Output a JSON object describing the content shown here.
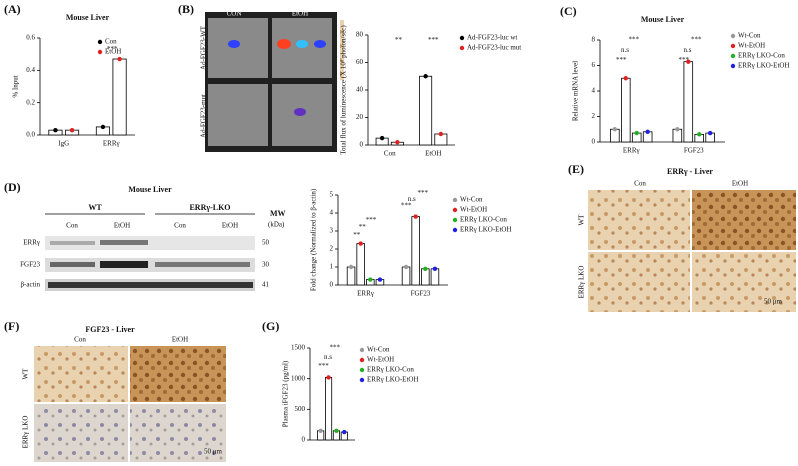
{
  "panels": {
    "a": {
      "label": "(A)"
    },
    "b": {
      "label": "(B)",
      "col1": "CON",
      "col2": "EtOH",
      "row1": "Ad-FGF23-WT",
      "row2": "Ad-FGF23-mut"
    },
    "c": {
      "label": "(C)"
    },
    "d": {
      "label": "(D)",
      "title": "Mouse Liver",
      "wt": "WT",
      "lko": "ERRγ-LKO",
      "con1": "Con",
      "etoh1": "EtOH",
      "con2": "Con",
      "etoh2": "EtOH",
      "mw": "MW",
      "kda": "(kDa)",
      "band1": "ERRγ",
      "band2": "FGF23",
      "band3": "β-actin",
      "mw1": "50",
      "mw2": "30",
      "mw3": "41"
    },
    "e": {
      "label": "(E)",
      "title": "ERRγ - Liver",
      "con": "Con",
      "etoh": "EtOH",
      "wt": "WT",
      "lko": "ERRγ LKO",
      "scale": "50 μm"
    },
    "f": {
      "label": "(F)",
      "title": "FGF23 - Liver",
      "con": "Con",
      "etoh": "EtOH",
      "wt": "WT",
      "lko": "ERRγ LKO",
      "scale": "50 μm"
    },
    "g": {
      "label": "(G)"
    }
  },
  "chart_data": [
    {
      "type": "bar",
      "title": "Mouse Liver",
      "ylabel": "% Input",
      "categories": [
        "IgG",
        "ERRγ"
      ],
      "series": [
        {
          "name": "Con",
          "color": "#000000",
          "values": [
            0.03,
            0.05
          ]
        },
        {
          "name": "EtOH",
          "color": "#e02020",
          "values": [
            0.03,
            0.47
          ]
        }
      ],
      "ylim": [
        0,
        0.6
      ],
      "yticks": [
        {
          "value": 0,
          "label": "0.0"
        },
        0.2,
        0.4,
        0.6
      ],
      "legend": "upper right",
      "annotations": [
        "***"
      ]
    },
    {
      "type": "bar",
      "ylabel": "Total flux of luminescence (X 10⁶ photon/sec)",
      "categories": [
        "Con",
        "EtOH"
      ],
      "series": [
        {
          "name": "Ad-FGF23-luc wt",
          "color": "#000000",
          "values": [
            5,
            50
          ]
        },
        {
          "name": "Ad-FGF23-luc mut",
          "color": "#e02020",
          "values": [
            2,
            8
          ]
        }
      ],
      "ylim": [
        0,
        80
      ],
      "yticks": [
        0,
        20,
        40,
        60,
        80
      ],
      "legend": "right",
      "annotations": [
        "**",
        "***"
      ]
    },
    {
      "type": "bar",
      "title": "Mouse Liver",
      "ylabel": "Relative mRNA level",
      "categories": [
        "ERRγ",
        "FGF23"
      ],
      "series": [
        {
          "name": "Wt-Con",
          "color": "#999999",
          "values": [
            1,
            1
          ]
        },
        {
          "name": "Wt-EtOH",
          "color": "#e02020",
          "values": [
            5,
            6.3
          ]
        },
        {
          "name": "ERRγ LKO-Con",
          "color": "#22b022",
          "values": [
            0.7,
            0.6
          ]
        },
        {
          "name": "ERRγ LKO-EtOH",
          "color": "#2020e0",
          "values": [
            0.8,
            0.7
          ]
        }
      ],
      "ylim": [
        0,
        8
      ],
      "yticks": [
        0,
        2,
        4,
        6,
        8
      ],
      "legend": "upper right",
      "annotations": [
        "***",
        "n.s",
        "***",
        "***",
        "n.s",
        "***"
      ]
    },
    {
      "type": "bar",
      "ylabel": "Fold change (Normalized to β-actin)",
      "categories": [
        "ERRγ",
        "FGF23"
      ],
      "series": [
        {
          "name": "Wt-Con",
          "color": "#999999",
          "values": [
            1,
            1
          ]
        },
        {
          "name": "Wt-EtOH",
          "color": "#e02020",
          "values": [
            2.3,
            3.8
          ]
        },
        {
          "name": "ERRγ LKO-Con",
          "color": "#22b022",
          "values": [
            0.3,
            0.9
          ]
        },
        {
          "name": "ERRγ LKO-EtOH",
          "color": "#2020e0",
          "values": [
            0.3,
            0.9
          ]
        }
      ],
      "ylim": [
        0,
        5
      ],
      "yticks": [
        0,
        1,
        2,
        3,
        4,
        5
      ],
      "legend": "right",
      "annotations": [
        "**",
        "**",
        "***",
        "***",
        "n.s",
        "***"
      ]
    },
    {
      "type": "bar",
      "ylabel": "Plasma iFGF23 (pg/ml)",
      "categories": [
        null
      ],
      "series": [
        {
          "name": "Wt-Con",
          "color": "#999999",
          "values": [
            150
          ]
        },
        {
          "name": "Wt-EtOH",
          "color": "#e02020",
          "values": [
            1020
          ]
        },
        {
          "name": "ERRγ LKO-Con",
          "color": "#22b022",
          "values": [
            150
          ]
        },
        {
          "name": "ERRγ LKO-EtOH",
          "color": "#2020e0",
          "values": [
            130
          ]
        }
      ],
      "ylim": [
        0,
        1500
      ],
      "yticks": [
        0,
        500,
        1000,
        1500
      ],
      "legend": "right",
      "annotations": [
        "***",
        "n.s",
        "***"
      ]
    }
  ]
}
